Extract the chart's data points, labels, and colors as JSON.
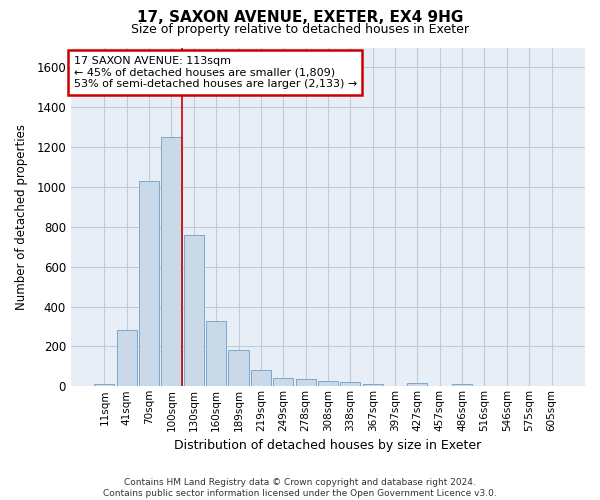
{
  "title1": "17, SAXON AVENUE, EXETER, EX4 9HG",
  "title2": "Size of property relative to detached houses in Exeter",
  "xlabel": "Distribution of detached houses by size in Exeter",
  "ylabel": "Number of detached properties",
  "footnote": "Contains HM Land Registry data © Crown copyright and database right 2024.\nContains public sector information licensed under the Open Government Licence v3.0.",
  "bar_labels": [
    "11sqm",
    "41sqm",
    "70sqm",
    "100sqm",
    "130sqm",
    "160sqm",
    "189sqm",
    "219sqm",
    "249sqm",
    "278sqm",
    "308sqm",
    "338sqm",
    "367sqm",
    "397sqm",
    "427sqm",
    "457sqm",
    "486sqm",
    "516sqm",
    "546sqm",
    "575sqm",
    "605sqm"
  ],
  "bar_values": [
    10,
    280,
    1030,
    1250,
    760,
    330,
    180,
    80,
    42,
    38,
    28,
    22,
    10,
    0,
    14,
    0,
    12,
    0,
    0,
    0,
    0
  ],
  "bar_color": "#c9d9e8",
  "bar_edge_color": "#7aa8cc",
  "grid_color": "#bbccdd",
  "bg_color": "#e8eef5",
  "annotation_text": "17 SAXON AVENUE: 113sqm\n← 45% of detached houses are smaller (1,809)\n53% of semi-detached houses are larger (2,133) →",
  "vline_x": 3.45,
  "vline_color": "#cc0000",
  "annotation_box_facecolor": "#ffffff",
  "annotation_box_edgecolor": "#cc0000",
  "ylim": [
    0,
    1700
  ],
  "yticks": [
    0,
    200,
    400,
    600,
    800,
    1000,
    1200,
    1400,
    1600
  ]
}
